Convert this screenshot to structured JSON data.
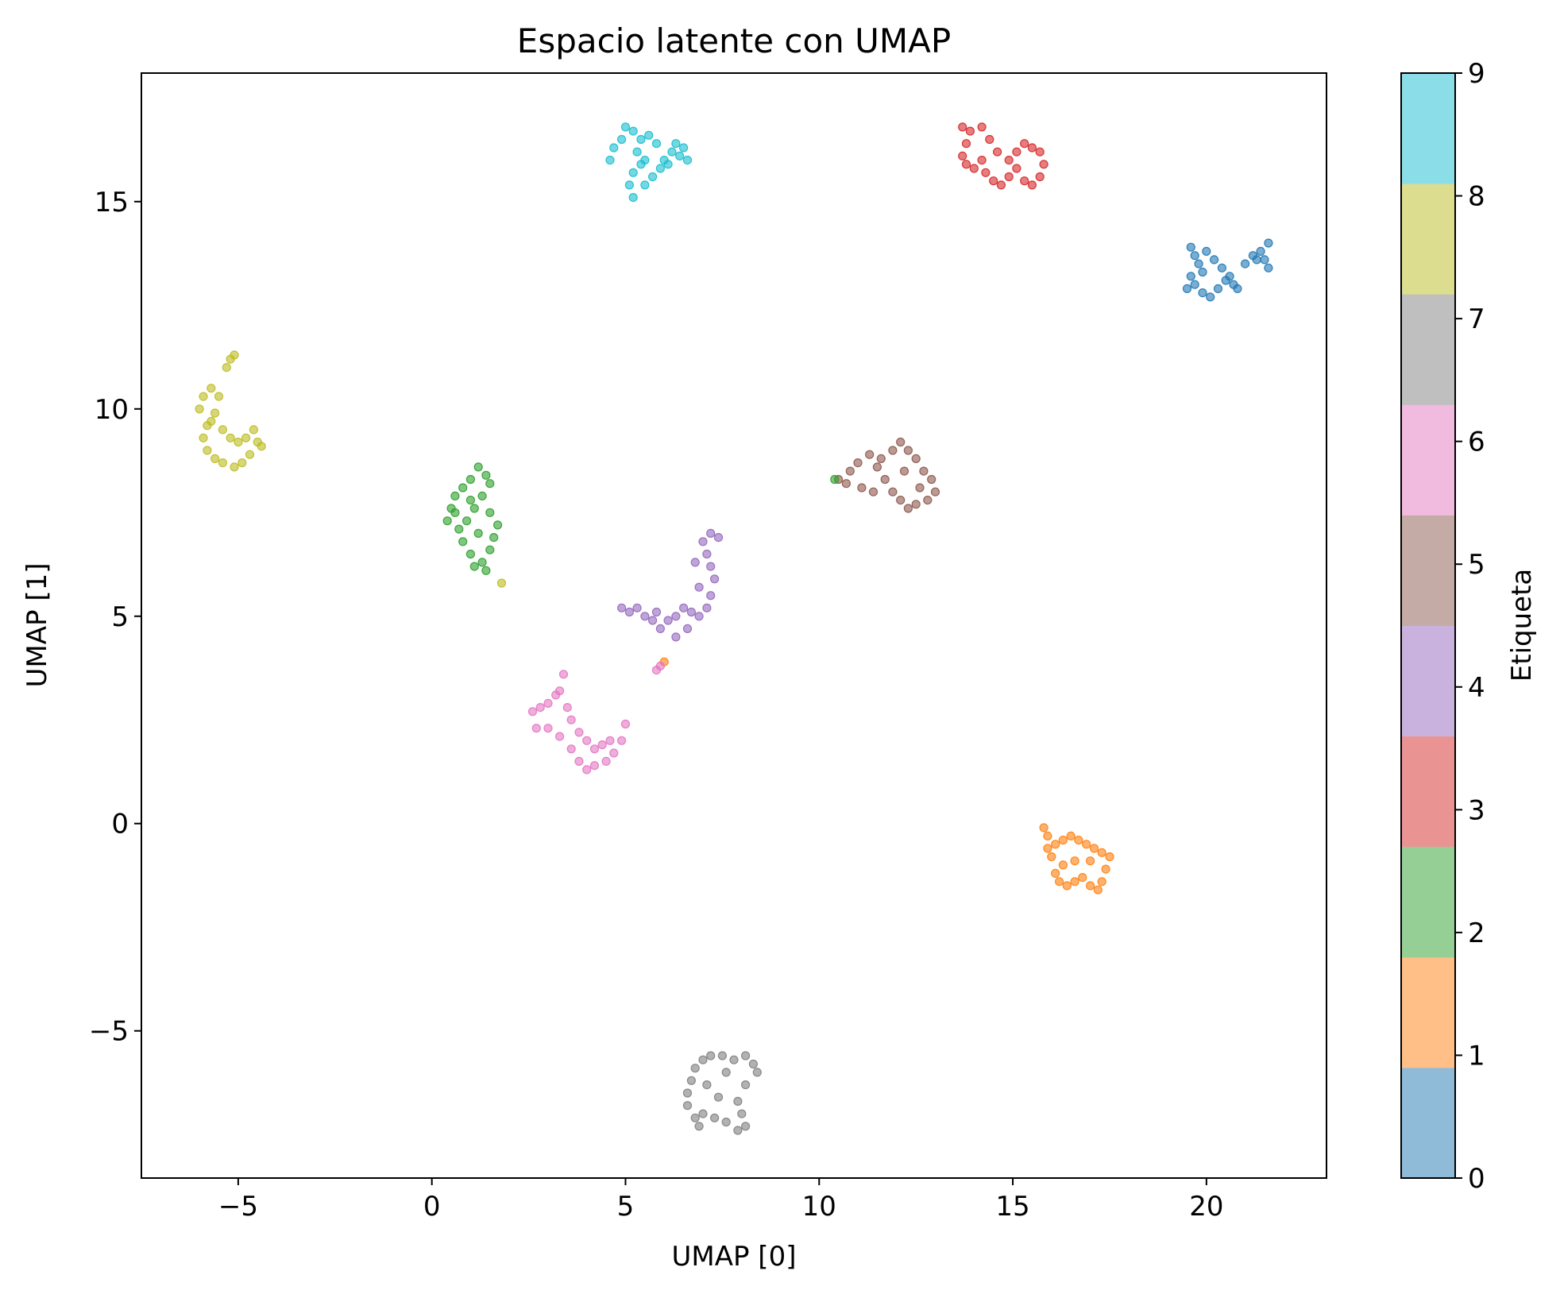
{
  "chart_data": {
    "type": "scatter",
    "title": "Espacio latente con UMAP",
    "xlabel": "UMAP [0]",
    "ylabel": "UMAP [1]",
    "xlim": [
      -7.5,
      23.1
    ],
    "ylim": [
      -8.55,
      18.1
    ],
    "xticks": [
      -5,
      0,
      5,
      10,
      15,
      20
    ],
    "yticks": [
      -5,
      0,
      5,
      10,
      15
    ],
    "xtick_labels": [
      "−5",
      "0",
      "5",
      "10",
      "15",
      "20"
    ],
    "ytick_labels": [
      "−5",
      "0",
      "5",
      "10",
      "15"
    ],
    "grid": false,
    "point_opacity": 0.6,
    "colorbar": {
      "label": "Etiqueta",
      "ticks": [
        0,
        1,
        2,
        3,
        4,
        5,
        6,
        7,
        8,
        9
      ],
      "tick_labels": [
        "0",
        "1",
        "2",
        "3",
        "4",
        "5",
        "6",
        "7",
        "8",
        "9"
      ],
      "colors": [
        "#1f77b4",
        "#ff7f0e",
        "#2ca02c",
        "#d62728",
        "#9467bd",
        "#8c564b",
        "#e377c2",
        "#7f7f7f",
        "#bcbd22",
        "#17becf"
      ],
      "band_colors": [
        "#8fbbd9",
        "#ffbf86",
        "#95cf95",
        "#ea9393",
        "#c9b3de",
        "#c5aba5",
        "#f1bbe0",
        "#bfbfbf",
        "#dddd90",
        "#8bdee7"
      ]
    },
    "clusters": [
      {
        "label": 0,
        "points": [
          [
            19.6,
            13.9
          ],
          [
            19.7,
            13.7
          ],
          [
            19.8,
            13.5
          ],
          [
            19.6,
            13.2
          ],
          [
            19.7,
            13.0
          ],
          [
            19.9,
            12.8
          ],
          [
            20.1,
            12.7
          ],
          [
            20.3,
            12.9
          ],
          [
            20.5,
            13.1
          ],
          [
            20.4,
            13.4
          ],
          [
            20.2,
            13.6
          ],
          [
            20.0,
            13.8
          ],
          [
            20.6,
            13.2
          ],
          [
            20.8,
            12.9
          ],
          [
            21.0,
            13.5
          ],
          [
            21.2,
            13.7
          ],
          [
            21.4,
            13.8
          ],
          [
            21.6,
            14.0
          ],
          [
            21.5,
            13.6
          ],
          [
            21.6,
            13.4
          ],
          [
            21.3,
            13.6
          ],
          [
            19.5,
            12.9
          ],
          [
            19.9,
            13.3
          ],
          [
            20.7,
            13.0
          ]
        ]
      },
      {
        "label": 1,
        "points": [
          [
            15.8,
            -0.1
          ],
          [
            15.9,
            -0.3
          ],
          [
            16.1,
            -0.5
          ],
          [
            16.3,
            -0.4
          ],
          [
            16.5,
            -0.3
          ],
          [
            16.7,
            -0.4
          ],
          [
            16.9,
            -0.5
          ],
          [
            17.1,
            -0.6
          ],
          [
            17.3,
            -0.7
          ],
          [
            17.5,
            -0.8
          ],
          [
            17.4,
            -1.1
          ],
          [
            17.3,
            -1.4
          ],
          [
            17.2,
            -1.6
          ],
          [
            17.0,
            -1.5
          ],
          [
            16.8,
            -1.3
          ],
          [
            16.6,
            -1.4
          ],
          [
            16.4,
            -1.5
          ],
          [
            16.2,
            -1.4
          ],
          [
            16.1,
            -1.2
          ],
          [
            16.3,
            -1.0
          ],
          [
            15.9,
            -0.6
          ],
          [
            16.6,
            -0.9
          ],
          [
            16.0,
            -0.8
          ],
          [
            17.0,
            -0.9
          ]
        ]
      },
      {
        "label": 2,
        "points": [
          [
            0.4,
            7.3
          ],
          [
            0.5,
            7.6
          ],
          [
            0.6,
            7.9
          ],
          [
            0.8,
            8.1
          ],
          [
            1.0,
            8.3
          ],
          [
            1.2,
            8.6
          ],
          [
            1.4,
            8.4
          ],
          [
            1.5,
            8.2
          ],
          [
            1.3,
            7.9
          ],
          [
            1.1,
            7.6
          ],
          [
            0.9,
            7.3
          ],
          [
            0.7,
            7.1
          ],
          [
            0.8,
            6.8
          ],
          [
            1.0,
            6.5
          ],
          [
            1.1,
            6.2
          ],
          [
            1.3,
            6.3
          ],
          [
            1.5,
            6.6
          ],
          [
            1.6,
            6.9
          ],
          [
            1.7,
            7.2
          ],
          [
            1.5,
            7.5
          ],
          [
            1.2,
            7.0
          ],
          [
            0.6,
            7.5
          ],
          [
            1.0,
            7.8
          ],
          [
            1.4,
            6.1
          ]
        ]
      },
      {
        "label": 3,
        "points": [
          [
            13.7,
            16.8
          ],
          [
            13.9,
            16.7
          ],
          [
            13.8,
            16.4
          ],
          [
            13.7,
            16.1
          ],
          [
            13.8,
            15.9
          ],
          [
            14.0,
            15.8
          ],
          [
            14.2,
            16.0
          ],
          [
            14.3,
            15.7
          ],
          [
            14.5,
            15.5
          ],
          [
            14.7,
            15.4
          ],
          [
            14.9,
            15.6
          ],
          [
            15.1,
            15.8
          ],
          [
            15.3,
            15.5
          ],
          [
            15.5,
            15.4
          ],
          [
            15.7,
            15.6
          ],
          [
            15.8,
            15.9
          ],
          [
            15.7,
            16.2
          ],
          [
            15.5,
            16.3
          ],
          [
            15.3,
            16.4
          ],
          [
            15.1,
            16.2
          ],
          [
            14.9,
            16.0
          ],
          [
            14.6,
            16.2
          ],
          [
            14.4,
            16.5
          ],
          [
            14.2,
            16.8
          ]
        ]
      },
      {
        "label": 4,
        "points": [
          [
            4.9,
            5.2
          ],
          [
            5.1,
            5.1
          ],
          [
            5.3,
            5.2
          ],
          [
            5.5,
            5.0
          ],
          [
            5.7,
            4.9
          ],
          [
            5.9,
            4.7
          ],
          [
            6.1,
            4.9
          ],
          [
            6.3,
            5.0
          ],
          [
            6.5,
            5.2
          ],
          [
            6.7,
            5.1
          ],
          [
            6.9,
            5.0
          ],
          [
            7.1,
            5.2
          ],
          [
            7.2,
            5.5
          ],
          [
            7.3,
            5.9
          ],
          [
            7.2,
            6.2
          ],
          [
            7.1,
            6.5
          ],
          [
            7.0,
            6.8
          ],
          [
            7.2,
            7.0
          ],
          [
            7.4,
            6.9
          ],
          [
            6.8,
            6.3
          ],
          [
            6.9,
            5.7
          ],
          [
            6.6,
            4.7
          ],
          [
            6.3,
            4.5
          ],
          [
            5.8,
            5.1
          ]
        ]
      },
      {
        "label": 5,
        "points": [
          [
            10.5,
            8.3
          ],
          [
            10.8,
            8.5
          ],
          [
            11.0,
            8.7
          ],
          [
            11.3,
            8.9
          ],
          [
            11.6,
            8.8
          ],
          [
            11.9,
            9.0
          ],
          [
            12.1,
            9.2
          ],
          [
            12.3,
            9.0
          ],
          [
            12.5,
            8.8
          ],
          [
            12.7,
            8.5
          ],
          [
            12.9,
            8.3
          ],
          [
            13.0,
            8.0
          ],
          [
            12.8,
            7.8
          ],
          [
            12.5,
            7.7
          ],
          [
            12.3,
            7.6
          ],
          [
            12.1,
            7.8
          ],
          [
            11.9,
            8.0
          ],
          [
            11.7,
            8.3
          ],
          [
            11.5,
            8.6
          ],
          [
            11.1,
            8.1
          ],
          [
            10.7,
            8.2
          ],
          [
            12.6,
            8.1
          ],
          [
            11.4,
            8.0
          ],
          [
            12.2,
            8.5
          ]
        ]
      },
      {
        "label": 6,
        "points": [
          [
            2.6,
            2.7
          ],
          [
            2.8,
            2.8
          ],
          [
            3.0,
            2.9
          ],
          [
            3.2,
            3.1
          ],
          [
            3.4,
            3.6
          ],
          [
            3.3,
            3.2
          ],
          [
            3.5,
            2.8
          ],
          [
            3.6,
            2.5
          ],
          [
            3.8,
            2.2
          ],
          [
            4.0,
            2.0
          ],
          [
            4.2,
            1.8
          ],
          [
            4.4,
            1.9
          ],
          [
            4.6,
            2.0
          ],
          [
            4.7,
            1.7
          ],
          [
            4.5,
            1.5
          ],
          [
            4.2,
            1.4
          ],
          [
            4.0,
            1.3
          ],
          [
            3.8,
            1.5
          ],
          [
            3.6,
            1.8
          ],
          [
            3.3,
            2.1
          ],
          [
            3.0,
            2.3
          ],
          [
            2.7,
            2.3
          ],
          [
            5.0,
            2.4
          ],
          [
            4.9,
            2.0
          ]
        ]
      },
      {
        "label": 7,
        "points": [
          [
            6.6,
            -6.5
          ],
          [
            6.7,
            -6.2
          ],
          [
            6.8,
            -5.9
          ],
          [
            7.0,
            -5.7
          ],
          [
            7.2,
            -5.6
          ],
          [
            7.5,
            -5.6
          ],
          [
            7.8,
            -5.7
          ],
          [
            8.1,
            -5.6
          ],
          [
            8.3,
            -5.8
          ],
          [
            8.4,
            -6.0
          ],
          [
            8.1,
            -6.3
          ],
          [
            7.9,
            -6.7
          ],
          [
            8.0,
            -7.0
          ],
          [
            8.1,
            -7.3
          ],
          [
            7.9,
            -7.4
          ],
          [
            7.6,
            -7.2
          ],
          [
            7.3,
            -7.1
          ],
          [
            7.0,
            -7.0
          ],
          [
            6.8,
            -7.1
          ],
          [
            6.6,
            -6.8
          ],
          [
            7.1,
            -6.3
          ],
          [
            7.4,
            -6.6
          ],
          [
            7.6,
            -6.0
          ],
          [
            6.9,
            -7.3
          ]
        ]
      },
      {
        "label": 8,
        "points": [
          [
            -6.0,
            10.0
          ],
          [
            -5.9,
            10.3
          ],
          [
            -5.7,
            10.5
          ],
          [
            -5.5,
            10.3
          ],
          [
            -5.3,
            11.0
          ],
          [
            -5.1,
            11.3
          ],
          [
            -5.2,
            11.2
          ],
          [
            -5.6,
            9.9
          ],
          [
            -5.8,
            9.6
          ],
          [
            -5.9,
            9.3
          ],
          [
            -5.8,
            9.0
          ],
          [
            -5.6,
            8.8
          ],
          [
            -5.4,
            8.7
          ],
          [
            -5.1,
            8.6
          ],
          [
            -4.9,
            8.7
          ],
          [
            -4.7,
            8.9
          ],
          [
            -4.5,
            9.2
          ],
          [
            -4.6,
            9.5
          ],
          [
            -4.8,
            9.3
          ],
          [
            -5.0,
            9.2
          ],
          [
            -5.2,
            9.3
          ],
          [
            -4.4,
            9.1
          ],
          [
            -5.4,
            9.5
          ],
          [
            -5.7,
            9.7
          ],
          [
            1.8,
            5.8
          ]
        ]
      },
      {
        "label": 9,
        "points": [
          [
            4.6,
            16.0
          ],
          [
            4.7,
            16.3
          ],
          [
            4.9,
            16.5
          ],
          [
            5.0,
            16.8
          ],
          [
            5.2,
            16.7
          ],
          [
            5.4,
            16.5
          ],
          [
            5.6,
            16.6
          ],
          [
            5.3,
            16.2
          ],
          [
            5.4,
            15.9
          ],
          [
            5.2,
            15.7
          ],
          [
            5.1,
            15.4
          ],
          [
            5.2,
            15.1
          ],
          [
            5.5,
            15.4
          ],
          [
            5.7,
            15.6
          ],
          [
            5.9,
            15.8
          ],
          [
            6.0,
            16.0
          ],
          [
            6.2,
            16.2
          ],
          [
            6.4,
            16.1
          ],
          [
            6.6,
            16.0
          ],
          [
            6.5,
            16.3
          ],
          [
            6.3,
            16.4
          ],
          [
            6.1,
            15.9
          ],
          [
            5.8,
            16.4
          ],
          [
            5.5,
            16.0
          ]
        ]
      },
      {
        "label": 1,
        "points": [
          [
            6.0,
            3.9
          ]
        ]
      },
      {
        "label": 2,
        "points": [
          [
            10.4,
            8.3
          ]
        ]
      },
      {
        "label": 6,
        "points": [
          [
            5.8,
            3.7
          ],
          [
            5.9,
            3.8
          ]
        ]
      }
    ]
  }
}
